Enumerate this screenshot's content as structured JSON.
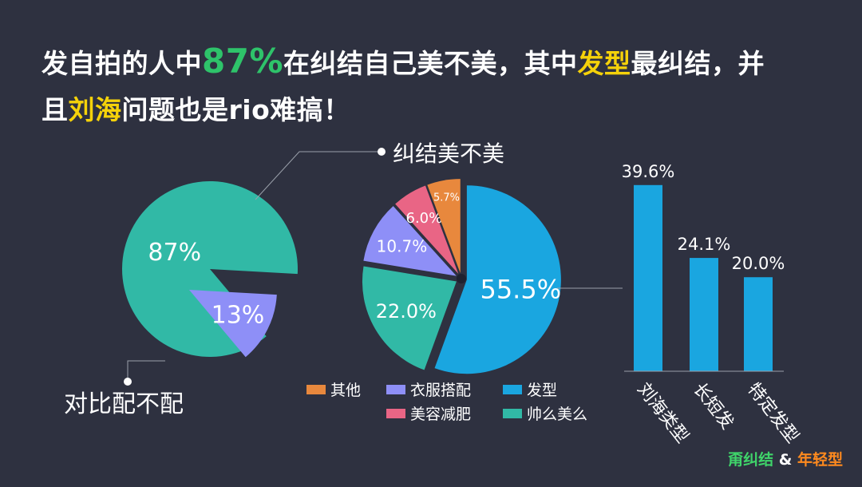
{
  "headline": {
    "part1": "发自拍的人中",
    "percent": "87%",
    "part2": "在纠结自己美不美，其中",
    "hair": "发型",
    "part3": "最纠结，并",
    "part4": "且",
    "bangs": "刘海",
    "part5": "问题也是rio难搞！"
  },
  "footer": {
    "logo_a": "甭纠结",
    "amp": "&",
    "logo_b": "年轻型"
  },
  "colors": {
    "background": "#2e3140",
    "teal": "#31b9a6",
    "lavender": "#8e8ff7",
    "blue": "#1aa6e0",
    "pink": "#e96585",
    "orange": "#e8883d",
    "green": "#2ec36a",
    "yellow": "#f5d20a"
  },
  "chart_data": [
    {
      "type": "pie",
      "slices": [
        {
          "label": "纠结美不美",
          "value": 87,
          "value_label": "87%",
          "color": "#31b9a6"
        },
        {
          "label": "对比配不配",
          "value": 13,
          "value_label": "13%",
          "color": "#8e8ff7"
        }
      ]
    },
    {
      "type": "pie",
      "slices": [
        {
          "label": "发型",
          "value": 55.5,
          "value_label": "55.5%",
          "color": "#1aa6e0"
        },
        {
          "label": "帅么美么",
          "value": 22.0,
          "value_label": "22.0%",
          "color": "#31b9a6"
        },
        {
          "label": "衣服搭配",
          "value": 10.7,
          "value_label": "10.7%",
          "color": "#8e8ff7"
        },
        {
          "label": "美容减肥",
          "value": 6.0,
          "value_label": "6.0%",
          "color": "#e96585"
        },
        {
          "label": "其他",
          "value": 5.7,
          "value_label": "5.7%",
          "color": "#e8883d"
        }
      ],
      "legend": [
        "其他",
        "衣服搭配",
        "发型",
        "美容减肥",
        "帅么美么"
      ],
      "legend_position": "bottom"
    },
    {
      "type": "bar",
      "categories": [
        "刘海类型",
        "长短发",
        "特定发型"
      ],
      "values": [
        39.6,
        24.1,
        20.0
      ],
      "value_labels": [
        "39.6%",
        "24.1%",
        "20.0%"
      ],
      "ylim": [
        0,
        45
      ],
      "color": "#1aa6e0"
    }
  ]
}
